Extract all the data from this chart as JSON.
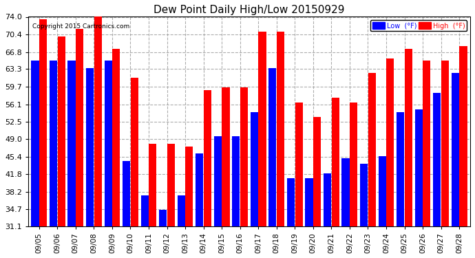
{
  "title": "Dew Point Daily High/Low 20150929",
  "copyright": "Copyright 2015 Cartronics.com",
  "dates": [
    "09/05",
    "09/06",
    "09/07",
    "09/08",
    "09/09",
    "09/10",
    "09/11",
    "09/12",
    "09/13",
    "09/14",
    "09/15",
    "09/16",
    "09/17",
    "09/18",
    "09/19",
    "09/20",
    "09/21",
    "09/22",
    "09/23",
    "09/24",
    "09/25",
    "09/26",
    "09/27",
    "09/28"
  ],
  "low_values": [
    65.0,
    65.0,
    65.0,
    63.5,
    65.0,
    44.5,
    37.5,
    34.5,
    37.5,
    46.0,
    49.5,
    49.5,
    54.5,
    63.5,
    41.0,
    41.0,
    42.0,
    45.0,
    44.0,
    45.5,
    54.5,
    55.0,
    58.5,
    62.5
  ],
  "high_values": [
    73.5,
    70.0,
    71.5,
    74.5,
    67.5,
    61.5,
    48.0,
    48.0,
    47.5,
    59.0,
    59.5,
    59.5,
    71.0,
    71.0,
    56.5,
    53.5,
    57.5,
    56.5,
    62.5,
    65.5,
    67.5,
    65.0,
    65.0,
    68.0
  ],
  "low_color": "#0000FF",
  "high_color": "#FF0000",
  "background_color": "#FFFFFF",
  "plot_background": "#FFFFFF",
  "grid_color": "#999999",
  "yticks": [
    31.1,
    34.7,
    38.2,
    41.8,
    45.4,
    49.0,
    52.5,
    56.1,
    59.7,
    63.3,
    66.8,
    70.4,
    74.0
  ],
  "ylim_low": 31.1,
  "ylim_high": 74.0,
  "legend_low_label": "Low  (°F)",
  "legend_high_label": "High  (°F)",
  "bar_width": 0.42,
  "bar_gap": 0.02
}
